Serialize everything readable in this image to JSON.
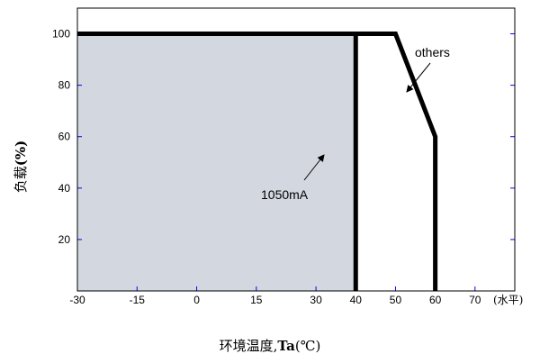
{
  "chart_data": {
    "type": "line",
    "title": "",
    "xlabel_main": "环境温度,",
    "xlabel_bold": "Ta",
    "xlabel_unit": "(℃)",
    "ylabel_main": "负载",
    "ylabel_unit": "(%)",
    "x_unit_note": "(水平)",
    "xlim": [
      -30,
      80
    ],
    "ylim": [
      0,
      110
    ],
    "x_ticks": [
      -30,
      -15,
      0,
      15,
      30,
      40,
      50,
      60,
      70
    ],
    "y_ticks": [
      20,
      40,
      60,
      80,
      100
    ],
    "grid": false,
    "series": [
      {
        "name": "1050mA",
        "x": [
          -30,
          40,
          40
        ],
        "y": [
          100,
          100,
          0
        ]
      },
      {
        "name": "others",
        "x": [
          -30,
          50,
          60,
          60
        ],
        "y": [
          100,
          100,
          60,
          0
        ]
      }
    ],
    "shaded_region": {
      "x": [
        -30,
        40
      ],
      "y": [
        0,
        100
      ]
    },
    "annotations": [
      {
        "text": "1050mA",
        "series": "1050mA"
      },
      {
        "text": "others",
        "series": "others"
      }
    ],
    "colors": {
      "line": "#000000",
      "fill": "#d3d8e0",
      "tick": "#0000ff"
    }
  }
}
